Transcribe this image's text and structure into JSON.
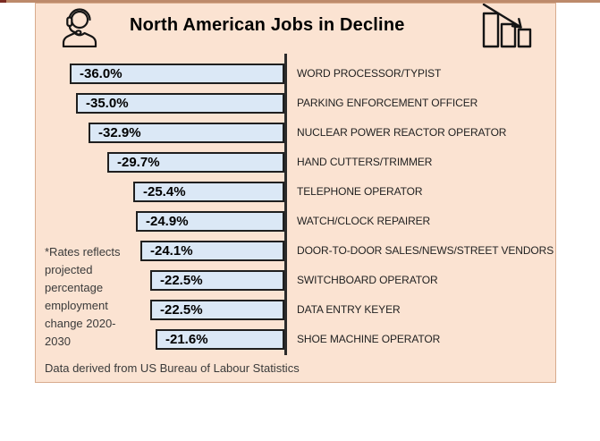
{
  "header": {
    "title": "North American Jobs in Decline",
    "left_icon": "headset-person-icon",
    "right_icon": "declining-bar-chart-icon"
  },
  "chart_data": {
    "type": "bar",
    "orientation": "horizontal",
    "title": "North American Jobs in Decline",
    "unit": "%",
    "xlim": [
      -36,
      0
    ],
    "axis_side": "right",
    "grid": false,
    "legend": false,
    "categories": [
      "WORD PROCESSOR/TYPIST",
      "PARKING ENFORCEMENT OFFICER",
      "NUCLEAR POWER REACTOR OPERATOR",
      "HAND CUTTERS/TRIMMER",
      "TELEPHONE OPERATOR",
      "WATCH/CLOCK REPAIRER",
      "DOOR-TO-DOOR SALES/NEWS/STREET VENDORS",
      "SWITCHBOARD OPERATOR",
      "DATA ENTRY KEYER",
      "SHOE MACHINE OPERATOR"
    ],
    "values": [
      -36.0,
      -35.0,
      -32.9,
      -29.7,
      -25.4,
      -24.9,
      -24.1,
      -22.5,
      -22.5,
      -21.6
    ],
    "value_labels": [
      "-36.0%",
      "-35.0%",
      "-32.9%",
      "-29.7%",
      "-25.4%",
      "-24.9%",
      "-24.1%",
      "-22.5%",
      "-22.5%",
      "-21.6%"
    ],
    "value_label_position": "inside-left",
    "category_label_position": "right-of-axis"
  },
  "side_note": {
    "full_text": "*Rates reflects projected percentage employment change 2020-2030",
    "lines": [
      "*Rates reflects",
      "projected",
      "percentage",
      "employment",
      "change 2020-",
      "2030"
    ]
  },
  "footer": {
    "text": "Data derived from US Bureau of Labour Statistics"
  },
  "colors": {
    "panel_background": "#fbe3d2",
    "bar_fill": "#dbe8f6",
    "bar_border": "#1f1f1f",
    "axis_line": "#2b2b2b",
    "top_rule": "#bd8a6b",
    "corner_mark": "#7b2b22",
    "text": "#222222"
  }
}
